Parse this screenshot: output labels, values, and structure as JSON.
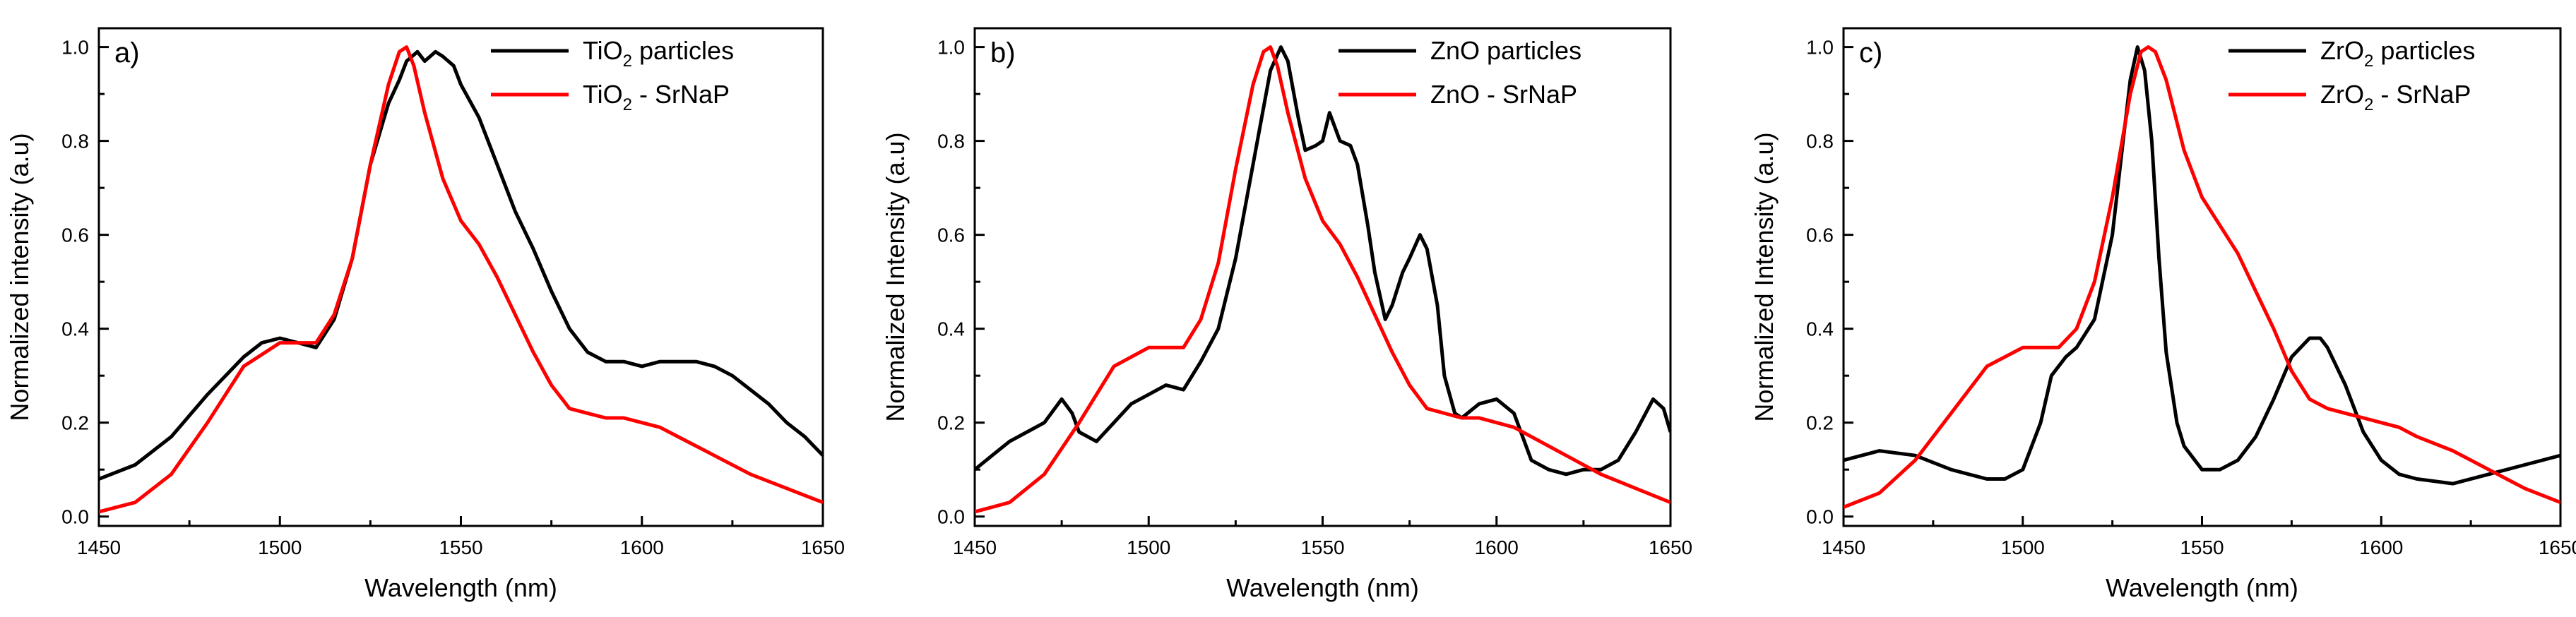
{
  "chart_data": [
    {
      "type": "line",
      "panel_label": "a)",
      "xlabel": "Wavelength (nm)",
      "ylabel": "Normalized intensity (a.u)",
      "xlim": [
        1450,
        1650
      ],
      "ylim": [
        0.0,
        1.0
      ],
      "xticks": [
        1450,
        1500,
        1550,
        1600,
        1650
      ],
      "xtick_labels": [
        "1450",
        "1500",
        "1550",
        "1600",
        "1650"
      ],
      "yticks": [
        0.0,
        0.2,
        0.4,
        0.6,
        0.8,
        1.0
      ],
      "ytick_labels": [
        "0.0",
        "0.2",
        "0.4",
        "0.6",
        "0.8",
        "1.0"
      ],
      "legend_position": "top-right",
      "series": [
        {
          "name": "TiO2 particles",
          "legend": {
            "pre": "TiO",
            "sub": "2",
            "post": " particles"
          },
          "color": "#000000",
          "x": [
            1450,
            1460,
            1470,
            1480,
            1490,
            1495,
            1500,
            1505,
            1510,
            1515,
            1520,
            1525,
            1530,
            1533,
            1535,
            1538,
            1540,
            1543,
            1545,
            1548,
            1550,
            1555,
            1560,
            1565,
            1570,
            1575,
            1580,
            1585,
            1590,
            1595,
            1600,
            1605,
            1610,
            1615,
            1620,
            1625,
            1630,
            1635,
            1640,
            1645,
            1650
          ],
          "y": [
            0.08,
            0.11,
            0.17,
            0.26,
            0.34,
            0.37,
            0.38,
            0.37,
            0.36,
            0.42,
            0.55,
            0.75,
            0.88,
            0.93,
            0.97,
            0.99,
            0.97,
            0.99,
            0.98,
            0.96,
            0.92,
            0.85,
            0.75,
            0.65,
            0.57,
            0.48,
            0.4,
            0.35,
            0.33,
            0.33,
            0.32,
            0.33,
            0.33,
            0.33,
            0.32,
            0.3,
            0.27,
            0.24,
            0.2,
            0.17,
            0.13
          ]
        },
        {
          "name": "TiO2 - SrNaP",
          "legend": {
            "pre": "TiO",
            "sub": "2",
            "post": " - SrNaP"
          },
          "color": "#ff0000",
          "x": [
            1450,
            1460,
            1470,
            1480,
            1490,
            1500,
            1505,
            1510,
            1515,
            1520,
            1525,
            1530,
            1533,
            1535,
            1537,
            1540,
            1545,
            1550,
            1555,
            1560,
            1565,
            1570,
            1575,
            1580,
            1585,
            1590,
            1595,
            1600,
            1605,
            1610,
            1620,
            1630,
            1640,
            1650
          ],
          "y": [
            0.01,
            0.03,
            0.09,
            0.2,
            0.32,
            0.37,
            0.37,
            0.37,
            0.43,
            0.55,
            0.75,
            0.92,
            0.99,
            1.0,
            0.96,
            0.86,
            0.72,
            0.63,
            0.58,
            0.51,
            0.43,
            0.35,
            0.28,
            0.23,
            0.22,
            0.21,
            0.21,
            0.2,
            0.19,
            0.17,
            0.13,
            0.09,
            0.06,
            0.03
          ]
        }
      ]
    },
    {
      "type": "line",
      "panel_label": "b)",
      "xlabel": "Wavelength (nm)",
      "ylabel": "Normalized Intensity (a.u)",
      "xlim": [
        1450,
        1650
      ],
      "ylim": [
        0.0,
        1.0
      ],
      "xticks": [
        1450,
        1500,
        1550,
        1600,
        1650
      ],
      "xtick_labels": [
        "1450",
        "1500",
        "1550",
        "1600",
        "1650"
      ],
      "yticks": [
        0.0,
        0.2,
        0.4,
        0.6,
        0.8,
        1.0
      ],
      "ytick_labels": [
        "0.0",
        "0.2",
        "0.4",
        "0.6",
        "0.8",
        "1.0"
      ],
      "legend_position": "top-right",
      "series": [
        {
          "name": "ZnO particles",
          "legend": {
            "pre": "ZnO particles",
            "sub": "",
            "post": ""
          },
          "color": "#000000",
          "x": [
            1450,
            1455,
            1460,
            1465,
            1470,
            1475,
            1478,
            1480,
            1485,
            1490,
            1495,
            1500,
            1505,
            1510,
            1515,
            1520,
            1525,
            1530,
            1535,
            1538,
            1540,
            1543,
            1545,
            1548,
            1550,
            1552,
            1555,
            1558,
            1560,
            1563,
            1565,
            1568,
            1570,
            1573,
            1575,
            1578,
            1580,
            1583,
            1585,
            1588,
            1590,
            1595,
            1600,
            1605,
            1610,
            1615,
            1620,
            1625,
            1630,
            1635,
            1640,
            1645,
            1648,
            1650
          ],
          "y": [
            0.1,
            0.13,
            0.16,
            0.18,
            0.2,
            0.25,
            0.22,
            0.18,
            0.16,
            0.2,
            0.24,
            0.26,
            0.28,
            0.27,
            0.33,
            0.4,
            0.55,
            0.75,
            0.95,
            1.0,
            0.97,
            0.85,
            0.78,
            0.79,
            0.8,
            0.86,
            0.8,
            0.79,
            0.75,
            0.62,
            0.52,
            0.42,
            0.45,
            0.52,
            0.55,
            0.6,
            0.57,
            0.45,
            0.3,
            0.22,
            0.21,
            0.24,
            0.25,
            0.22,
            0.12,
            0.1,
            0.09,
            0.1,
            0.1,
            0.12,
            0.18,
            0.25,
            0.23,
            0.18
          ]
        },
        {
          "name": "ZnO - SrNaP",
          "legend": {
            "pre": "ZnO - SrNaP",
            "sub": "",
            "post": ""
          },
          "color": "#ff0000",
          "x": [
            1450,
            1460,
            1470,
            1480,
            1490,
            1500,
            1505,
            1510,
            1515,
            1520,
            1525,
            1530,
            1533,
            1535,
            1537,
            1540,
            1545,
            1550,
            1555,
            1560,
            1565,
            1570,
            1575,
            1580,
            1585,
            1590,
            1595,
            1600,
            1605,
            1610,
            1620,
            1630,
            1640,
            1650
          ],
          "y": [
            0.01,
            0.03,
            0.09,
            0.2,
            0.32,
            0.36,
            0.36,
            0.36,
            0.42,
            0.54,
            0.74,
            0.92,
            0.99,
            1.0,
            0.96,
            0.86,
            0.72,
            0.63,
            0.58,
            0.51,
            0.43,
            0.35,
            0.28,
            0.23,
            0.22,
            0.21,
            0.21,
            0.2,
            0.19,
            0.17,
            0.13,
            0.09,
            0.06,
            0.03
          ]
        }
      ]
    },
    {
      "type": "line",
      "panel_label": "c)",
      "xlabel": "Wavelength (nm)",
      "ylabel": "Normalized Intensity (a.u)",
      "xlim": [
        1450,
        1650
      ],
      "ylim": [
        0.0,
        1.0
      ],
      "xticks": [
        1450,
        1500,
        1550,
        1600,
        1650
      ],
      "xtick_labels": [
        "1450",
        "1500",
        "1550",
        "1600",
        "1650"
      ],
      "yticks": [
        0.0,
        0.2,
        0.4,
        0.6,
        0.8,
        1.0
      ],
      "ytick_labels": [
        "0.0",
        "0.2",
        "0.4",
        "0.6",
        "0.8",
        "1.0"
      ],
      "legend_position": "top-right",
      "series": [
        {
          "name": "ZrO2 particles",
          "legend": {
            "pre": "ZrO",
            "sub": "2",
            "post": " particles"
          },
          "color": "#000000",
          "x": [
            1450,
            1460,
            1470,
            1480,
            1490,
            1495,
            1500,
            1505,
            1508,
            1512,
            1515,
            1520,
            1525,
            1528,
            1530,
            1532,
            1534,
            1536,
            1538,
            1540,
            1543,
            1545,
            1550,
            1555,
            1560,
            1565,
            1570,
            1575,
            1580,
            1583,
            1585,
            1590,
            1595,
            1600,
            1605,
            1610,
            1620,
            1630,
            1640,
            1650
          ],
          "y": [
            0.12,
            0.14,
            0.13,
            0.1,
            0.08,
            0.08,
            0.1,
            0.2,
            0.3,
            0.34,
            0.36,
            0.42,
            0.6,
            0.8,
            0.93,
            1.0,
            0.95,
            0.8,
            0.55,
            0.35,
            0.2,
            0.15,
            0.1,
            0.1,
            0.12,
            0.17,
            0.25,
            0.34,
            0.38,
            0.38,
            0.36,
            0.28,
            0.18,
            0.12,
            0.09,
            0.08,
            0.07,
            0.09,
            0.11,
            0.13
          ]
        },
        {
          "name": "ZrO2 - SrNaP",
          "legend": {
            "pre": "ZrO",
            "sub": "2",
            "post": " - SrNaP"
          },
          "color": "#ff0000",
          "x": [
            1450,
            1460,
            1470,
            1480,
            1490,
            1500,
            1505,
            1510,
            1515,
            1520,
            1525,
            1530,
            1533,
            1535,
            1537,
            1540,
            1545,
            1550,
            1555,
            1560,
            1565,
            1570,
            1575,
            1580,
            1585,
            1590,
            1595,
            1600,
            1605,
            1610,
            1620,
            1630,
            1640,
            1650
          ],
          "y": [
            0.02,
            0.05,
            0.12,
            0.22,
            0.32,
            0.36,
            0.36,
            0.36,
            0.4,
            0.5,
            0.68,
            0.9,
            0.99,
            1.0,
            0.99,
            0.93,
            0.78,
            0.68,
            0.62,
            0.56,
            0.48,
            0.4,
            0.31,
            0.25,
            0.23,
            0.22,
            0.21,
            0.2,
            0.19,
            0.17,
            0.14,
            0.1,
            0.06,
            0.03
          ]
        }
      ]
    }
  ]
}
